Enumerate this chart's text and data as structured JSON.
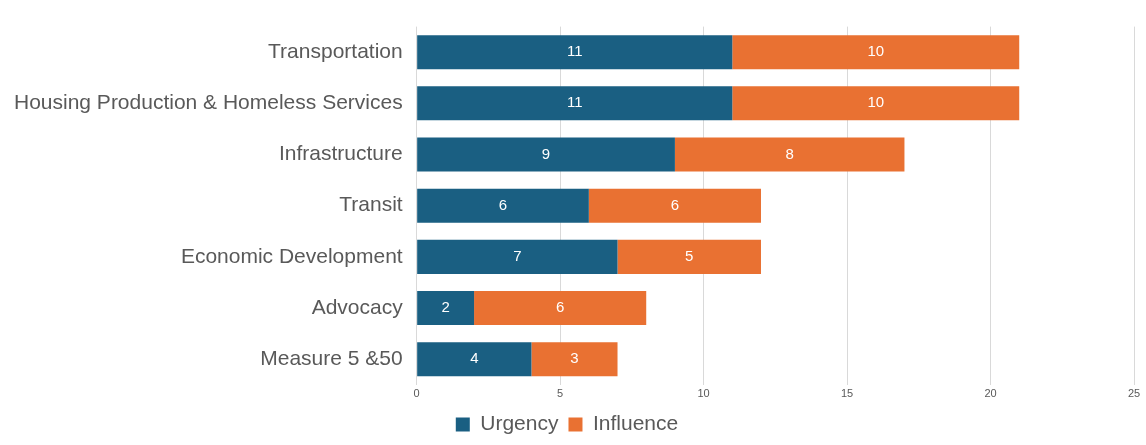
{
  "chart_data": {
    "type": "bar",
    "orientation": "horizontal",
    "stacked": true,
    "categories": [
      "Transportation",
      "Housing Production & Homeless Services",
      "Infrastructure",
      "Transit",
      "Economic Development",
      "Advocacy",
      "Measure 5 &50"
    ],
    "series": [
      {
        "name": "Urgency",
        "color": "#1a5f82",
        "values": [
          11,
          11,
          9,
          6,
          7,
          2,
          4
        ]
      },
      {
        "name": "Influence",
        "color": "#e97132",
        "values": [
          10,
          10,
          8,
          6,
          5,
          6,
          3
        ]
      }
    ],
    "xlim": [
      0,
      25
    ],
    "xticks": [
      0,
      5,
      10,
      15,
      20,
      25
    ],
    "grid": "x",
    "legend": "bottom",
    "data_labels": true
  }
}
